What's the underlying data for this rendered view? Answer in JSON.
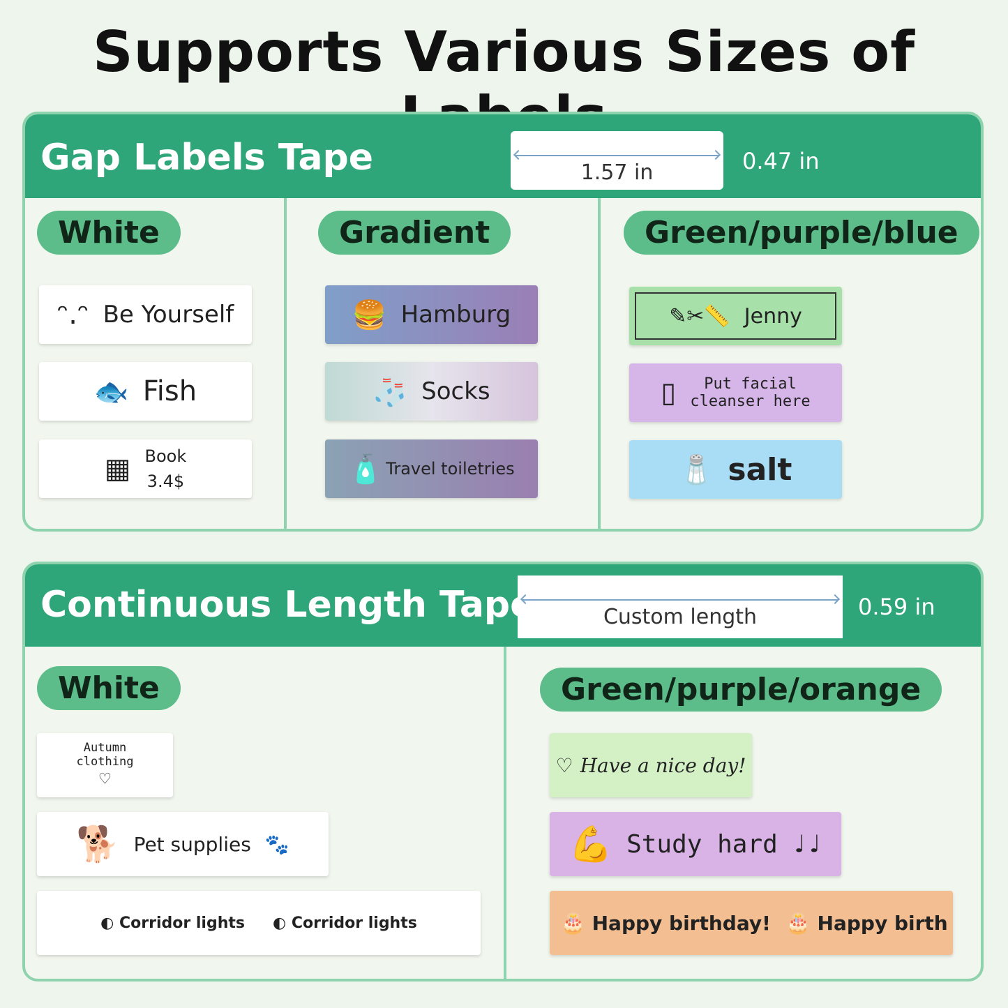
{
  "title": "Supports Various Sizes of Labels",
  "gap": {
    "title": "Gap Labels Tape",
    "width": "1.57 in",
    "height": "0.47 in",
    "white": {
      "label": "White",
      "items": [
        "Be Yourself",
        "Fish",
        "Book",
        "3.4$"
      ]
    },
    "gradient": {
      "label": "Gradient",
      "items": [
        "Hamburg",
        "Socks",
        "Travel toiletries"
      ]
    },
    "colors": {
      "label": "Green/purple/blue",
      "items": [
        "Jenny",
        "Put facial",
        "cleanser here",
        "salt"
      ]
    }
  },
  "cont": {
    "title": "Continuous Length Tape",
    "width": "Custom length",
    "height": "0.59 in",
    "white": {
      "label": "White",
      "items": [
        "Autumn",
        "clothing",
        "Pet supplies",
        "Corridor lights",
        "Corridor lights"
      ]
    },
    "colors": {
      "label": "Green/purple/orange",
      "items": [
        "Have a nice day!",
        "Study hard",
        "Happy birthday!",
        "Happy birth"
      ]
    }
  },
  "colors": {
    "header": "#2fa57a",
    "pill": "#5cbd8a",
    "border": "#8fd3ae"
  }
}
